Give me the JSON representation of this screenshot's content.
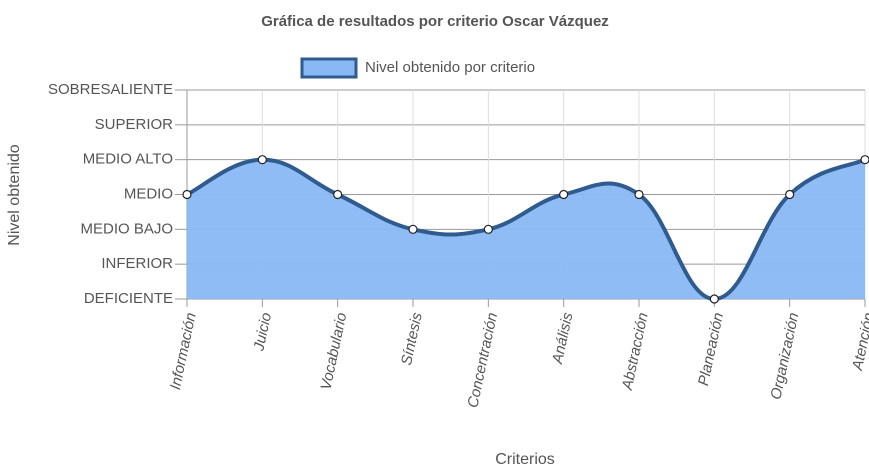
{
  "chart_data": {
    "type": "area",
    "title": "Gráfica de resultados por criterio Oscar Vázquez",
    "x_label": "Criterios",
    "y_label": "Nivel obtenido",
    "categories": [
      "Información",
      "Juicio",
      "Vocabulario",
      "Síntesis",
      "Concentración",
      "Análisis",
      "Abstracción",
      "Planeación",
      "Organización",
      "Atención"
    ],
    "series": [
      {
        "name": "Nivel obtenido por criterio",
        "color": "#2f5b8f",
        "fill": "#8ab8f5",
        "values": [
          4,
          5,
          4,
          3,
          3,
          4,
          4,
          1,
          4,
          5
        ]
      }
    ],
    "ylim": [
      1,
      7
    ],
    "yticks": [
      {
        "value": 1,
        "label": "DEFICIENTE"
      },
      {
        "value": 2,
        "label": "INFERIOR"
      },
      {
        "value": 3,
        "label": "MEDIO BAJO"
      },
      {
        "value": 4,
        "label": "MEDIO"
      },
      {
        "value": 5,
        "label": "MEDIO ALTO"
      },
      {
        "value": 6,
        "label": "SUPERIOR"
      },
      {
        "value": 7,
        "label": "SOBRESALIENTE"
      }
    ],
    "grid": true,
    "legend": "top"
  }
}
